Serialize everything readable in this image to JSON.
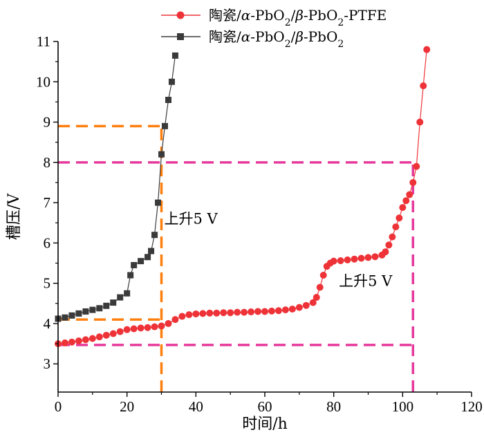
{
  "chart_data": {
    "type": "line",
    "xlabel": "时间/h",
    "ylabel": "槽压/V",
    "xlim": [
      0,
      120
    ],
    "ylim": [
      2.3,
      11
    ],
    "xticks": [
      0,
      20,
      40,
      60,
      80,
      100,
      120
    ],
    "yticks": [
      3,
      4,
      5,
      6,
      7,
      8,
      9,
      10,
      11
    ],
    "legend_position": "top-center",
    "grid": false,
    "series": [
      {
        "name_parts": [
          "陶瓷/",
          "α",
          "-PbO",
          "2",
          "/",
          "β",
          "-PbO",
          "2",
          "-PTFE"
        ],
        "color": "#ee3338",
        "marker": "circle",
        "points": [
          [
            0,
            3.5
          ],
          [
            2,
            3.52
          ],
          [
            4,
            3.54
          ],
          [
            6,
            3.57
          ],
          [
            8,
            3.6
          ],
          [
            10,
            3.63
          ],
          [
            12,
            3.67
          ],
          [
            14,
            3.71
          ],
          [
            16,
            3.75
          ],
          [
            18,
            3.8
          ],
          [
            20,
            3.85
          ],
          [
            22,
            3.87
          ],
          [
            24,
            3.89
          ],
          [
            26,
            3.9
          ],
          [
            28,
            3.92
          ],
          [
            30,
            3.94
          ],
          [
            32,
            4.0
          ],
          [
            34,
            4.1
          ],
          [
            36,
            4.18
          ],
          [
            38,
            4.22
          ],
          [
            40,
            4.24
          ],
          [
            42,
            4.25
          ],
          [
            44,
            4.26
          ],
          [
            46,
            4.26
          ],
          [
            48,
            4.27
          ],
          [
            50,
            4.27
          ],
          [
            52,
            4.28
          ],
          [
            54,
            4.28
          ],
          [
            56,
            4.29
          ],
          [
            58,
            4.3
          ],
          [
            60,
            4.3
          ],
          [
            62,
            4.31
          ],
          [
            64,
            4.32
          ],
          [
            66,
            4.34
          ],
          [
            68,
            4.36
          ],
          [
            70,
            4.4
          ],
          [
            72,
            4.45
          ],
          [
            74,
            4.52
          ],
          [
            75,
            4.65
          ],
          [
            76,
            4.9
          ],
          [
            77,
            5.2
          ],
          [
            78,
            5.42
          ],
          [
            79,
            5.5
          ],
          [
            80,
            5.55
          ],
          [
            82,
            5.56
          ],
          [
            84,
            5.58
          ],
          [
            86,
            5.6
          ],
          [
            88,
            5.62
          ],
          [
            90,
            5.64
          ],
          [
            92,
            5.66
          ],
          [
            94,
            5.7
          ],
          [
            95,
            5.78
          ],
          [
            96,
            5.95
          ],
          [
            97,
            6.15
          ],
          [
            98,
            6.4
          ],
          [
            99,
            6.62
          ],
          [
            100,
            6.88
          ],
          [
            101,
            7.05
          ],
          [
            102,
            7.2
          ],
          [
            103,
            7.5
          ],
          [
            104,
            7.9
          ],
          [
            105,
            9.0
          ],
          [
            106,
            9.9
          ],
          [
            107,
            10.8
          ]
        ]
      },
      {
        "name_parts": [
          "陶瓷/",
          "α",
          "-PbO",
          "2",
          "/",
          "β",
          "-PbO",
          "2"
        ],
        "color": "#3a3a3a",
        "marker": "square",
        "points": [
          [
            0,
            4.12
          ],
          [
            2,
            4.15
          ],
          [
            4,
            4.2
          ],
          [
            6,
            4.25
          ],
          [
            8,
            4.3
          ],
          [
            10,
            4.34
          ],
          [
            12,
            4.38
          ],
          [
            14,
            4.44
          ],
          [
            16,
            4.52
          ],
          [
            18,
            4.65
          ],
          [
            20,
            4.75
          ],
          [
            21,
            5.2
          ],
          [
            22,
            5.45
          ],
          [
            24,
            5.55
          ],
          [
            26,
            5.65
          ],
          [
            27,
            5.8
          ],
          [
            28,
            6.2
          ],
          [
            29,
            7.0
          ],
          [
            30,
            8.2
          ],
          [
            31,
            8.9
          ],
          [
            32,
            9.55
          ],
          [
            33,
            10.0
          ],
          [
            34,
            10.65
          ]
        ]
      }
    ],
    "reference_lines": [
      {
        "color": "#ff7f0e",
        "type": "horizontal",
        "y": 8.9,
        "x_range": [
          0,
          30
        ]
      },
      {
        "color": "#ff7f0e",
        "type": "horizontal",
        "y": 4.1,
        "x_range": [
          0,
          30
        ]
      },
      {
        "color": "#ff7f0e",
        "type": "vertical",
        "x": 30,
        "y_range": [
          2.3,
          8.9
        ]
      },
      {
        "color": "#e6399b",
        "type": "horizontal",
        "y": 8.0,
        "x_range": [
          0,
          103
        ]
      },
      {
        "color": "#e6399b",
        "type": "horizontal",
        "y": 3.47,
        "x_range": [
          0,
          103
        ]
      },
      {
        "color": "#e6399b",
        "type": "vertical",
        "x": 103,
        "y_range": [
          2.3,
          8.0
        ]
      }
    ],
    "annotations": [
      {
        "text": "上升5 V",
        "x": 30.8,
        "y": 6.48
      },
      {
        "text": "上升5 V",
        "x": 81.5,
        "y": 4.93
      }
    ]
  }
}
